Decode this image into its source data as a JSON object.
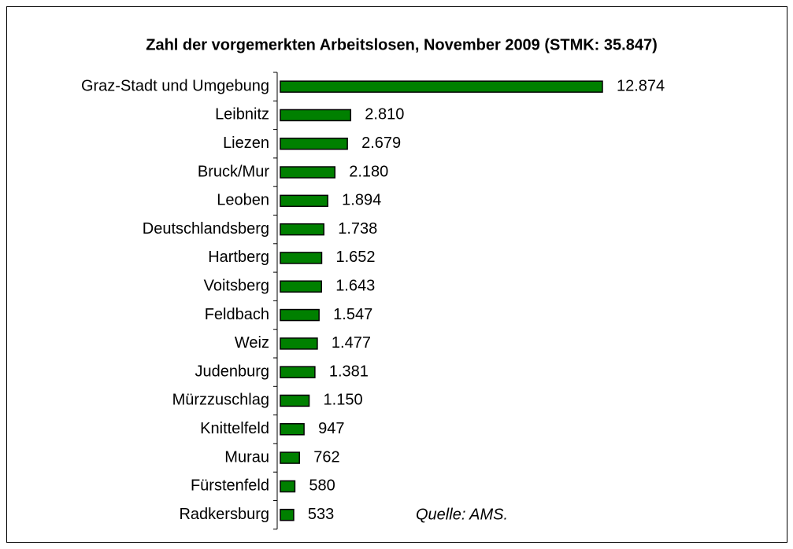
{
  "chart_data": {
    "type": "bar",
    "orientation": "horizontal",
    "title": "Zahl der vorgemerkten Arbeitslosen, November 2009 (STMK: 35.847)",
    "annotation": "Quelle: AMS.",
    "categories": [
      "Graz-Stadt und Umgebung",
      "Leibnitz",
      "Liezen",
      "Bruck/Mur",
      "Leoben",
      "Deutschlandsberg",
      "Hartberg",
      "Voitsberg",
      "Feldbach",
      "Weiz",
      "Judenburg",
      "Mürzzuschlag",
      "Knittelfeld",
      "Murau",
      "Fürstenfeld",
      "Radkersburg"
    ],
    "values": [
      12874,
      2810,
      2679,
      2180,
      1894,
      1738,
      1652,
      1643,
      1547,
      1477,
      1381,
      1150,
      947,
      762,
      580,
      533
    ],
    "value_labels": [
      "12.874",
      "2.810",
      "2.679",
      "2.180",
      "1.894",
      "1.738",
      "1.652",
      "1.643",
      "1.547",
      "1.477",
      "1.381",
      "1.150",
      "947",
      "762",
      "580",
      "533"
    ],
    "color": "#008000"
  }
}
